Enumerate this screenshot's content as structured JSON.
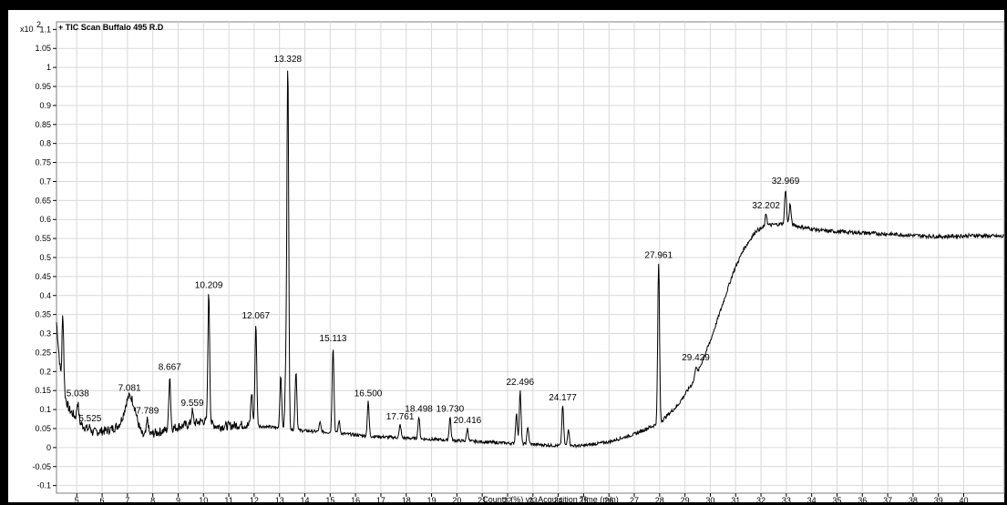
{
  "chart_data": {
    "type": "line",
    "title": "+ TIC Scan Buffalo 495 R.D",
    "scale_label": "x10",
    "scale_exponent": "2",
    "xlabel": "Counts (%) vs. Acquisition Time (min)",
    "ylabel": "",
    "xlim": [
      4.2,
      41.6
    ],
    "ylim": [
      -0.12,
      1.12
    ],
    "x_ticks": [
      "5",
      "6",
      "7",
      "8",
      "9",
      "10",
      "11",
      "12",
      "13",
      "14",
      "15",
      "16",
      "17",
      "18",
      "19",
      "20",
      "21",
      "22",
      "23",
      "24",
      "25",
      "26",
      "27",
      "28",
      "29",
      "30",
      "31",
      "32",
      "33",
      "34",
      "35",
      "36",
      "37",
      "38",
      "39",
      "40"
    ],
    "y_ticks": [
      "1.1",
      "1.05",
      "1",
      "0.95",
      "0.9",
      "0.85",
      "0.8",
      "0.75",
      "0.7",
      "0.65",
      "0.6",
      "0.55",
      "0.5",
      "0.45",
      "0.4",
      "0.35",
      "0.3",
      "0.25",
      "0.2",
      "0.15",
      "0.1",
      "0.05",
      "0",
      "-0.05",
      "-0.1"
    ],
    "grid": true,
    "legend": "none",
    "line_color": "#000000",
    "peaks": [
      {
        "label": "5.038",
        "x": 5.038,
        "y": 0.12
      },
      {
        "label": "5.525",
        "x": 5.525,
        "y": 0.055
      },
      {
        "label": "7.081",
        "x": 7.081,
        "y": 0.135
      },
      {
        "label": "7.789",
        "x": 7.789,
        "y": 0.075
      },
      {
        "label": "8.667",
        "x": 8.667,
        "y": 0.19
      },
      {
        "label": "9.559",
        "x": 9.559,
        "y": 0.095
      },
      {
        "label": "10.209",
        "x": 10.209,
        "y": 0.405
      },
      {
        "label": "12.067",
        "x": 12.067,
        "y": 0.325
      },
      {
        "label": "13.328",
        "x": 13.328,
        "y": 1.0
      },
      {
        "label": "15.113",
        "x": 15.113,
        "y": 0.265
      },
      {
        "label": "16.500",
        "x": 16.5,
        "y": 0.12
      },
      {
        "label": "17.761",
        "x": 17.761,
        "y": 0.06
      },
      {
        "label": "18.498",
        "x": 18.498,
        "y": 0.08
      },
      {
        "label": "19.730",
        "x": 19.73,
        "y": 0.08
      },
      {
        "label": "20.416",
        "x": 20.416,
        "y": 0.05
      },
      {
        "label": "22.496",
        "x": 22.496,
        "y": 0.15
      },
      {
        "label": "24.177",
        "x": 24.177,
        "y": 0.11
      },
      {
        "label": "27.961",
        "x": 27.961,
        "y": 0.485
      },
      {
        "label": "29.429",
        "x": 29.429,
        "y": 0.215
      },
      {
        "label": "32.202",
        "x": 32.202,
        "y": 0.615
      },
      {
        "label": "32.969",
        "x": 32.969,
        "y": 0.68
      }
    ],
    "extra_peaks": [
      {
        "x": 4.45,
        "y": 0.35
      },
      {
        "x": 11.9,
        "y": 0.145
      },
      {
        "x": 13.05,
        "y": 0.19
      },
      {
        "x": 13.25,
        "y": 0.19
      },
      {
        "x": 13.65,
        "y": 0.2
      },
      {
        "x": 14.6,
        "y": 0.065
      },
      {
        "x": 15.35,
        "y": 0.07
      },
      {
        "x": 22.35,
        "y": 0.09
      },
      {
        "x": 22.8,
        "y": 0.055
      },
      {
        "x": 24.4,
        "y": 0.05
      },
      {
        "x": 33.15,
        "y": 0.64
      }
    ],
    "baseline": [
      [
        4.2,
        0.33
      ],
      [
        4.4,
        0.16
      ],
      [
        4.7,
        0.1
      ],
      [
        5.2,
        0.06
      ],
      [
        5.6,
        0.04
      ],
      [
        6.2,
        0.045
      ],
      [
        6.8,
        0.06
      ],
      [
        7.3,
        0.07
      ],
      [
        7.6,
        0.03
      ],
      [
        8.2,
        0.04
      ],
      [
        9.0,
        0.055
      ],
      [
        10.0,
        0.07
      ],
      [
        10.6,
        0.055
      ],
      [
        11.5,
        0.06
      ],
      [
        12.5,
        0.055
      ],
      [
        13.8,
        0.045
      ],
      [
        15.0,
        0.04
      ],
      [
        16.5,
        0.03
      ],
      [
        18.0,
        0.025
      ],
      [
        19.5,
        0.02
      ],
      [
        21.0,
        0.015
      ],
      [
        22.5,
        0.01
      ],
      [
        24.0,
        0.005
      ],
      [
        25.0,
        0.005
      ],
      [
        26.0,
        0.015
      ],
      [
        27.0,
        0.035
      ],
      [
        28.0,
        0.065
      ],
      [
        28.7,
        0.11
      ],
      [
        29.4,
        0.18
      ],
      [
        30.0,
        0.28
      ],
      [
        30.5,
        0.38
      ],
      [
        30.9,
        0.46
      ],
      [
        31.3,
        0.52
      ],
      [
        31.8,
        0.57
      ],
      [
        32.3,
        0.585
      ],
      [
        33.0,
        0.59
      ],
      [
        33.6,
        0.58
      ],
      [
        34.5,
        0.57
      ],
      [
        36.0,
        0.565
      ],
      [
        37.5,
        0.56
      ],
      [
        39.0,
        0.555
      ],
      [
        40.5,
        0.558
      ],
      [
        41.6,
        0.555
      ]
    ]
  }
}
